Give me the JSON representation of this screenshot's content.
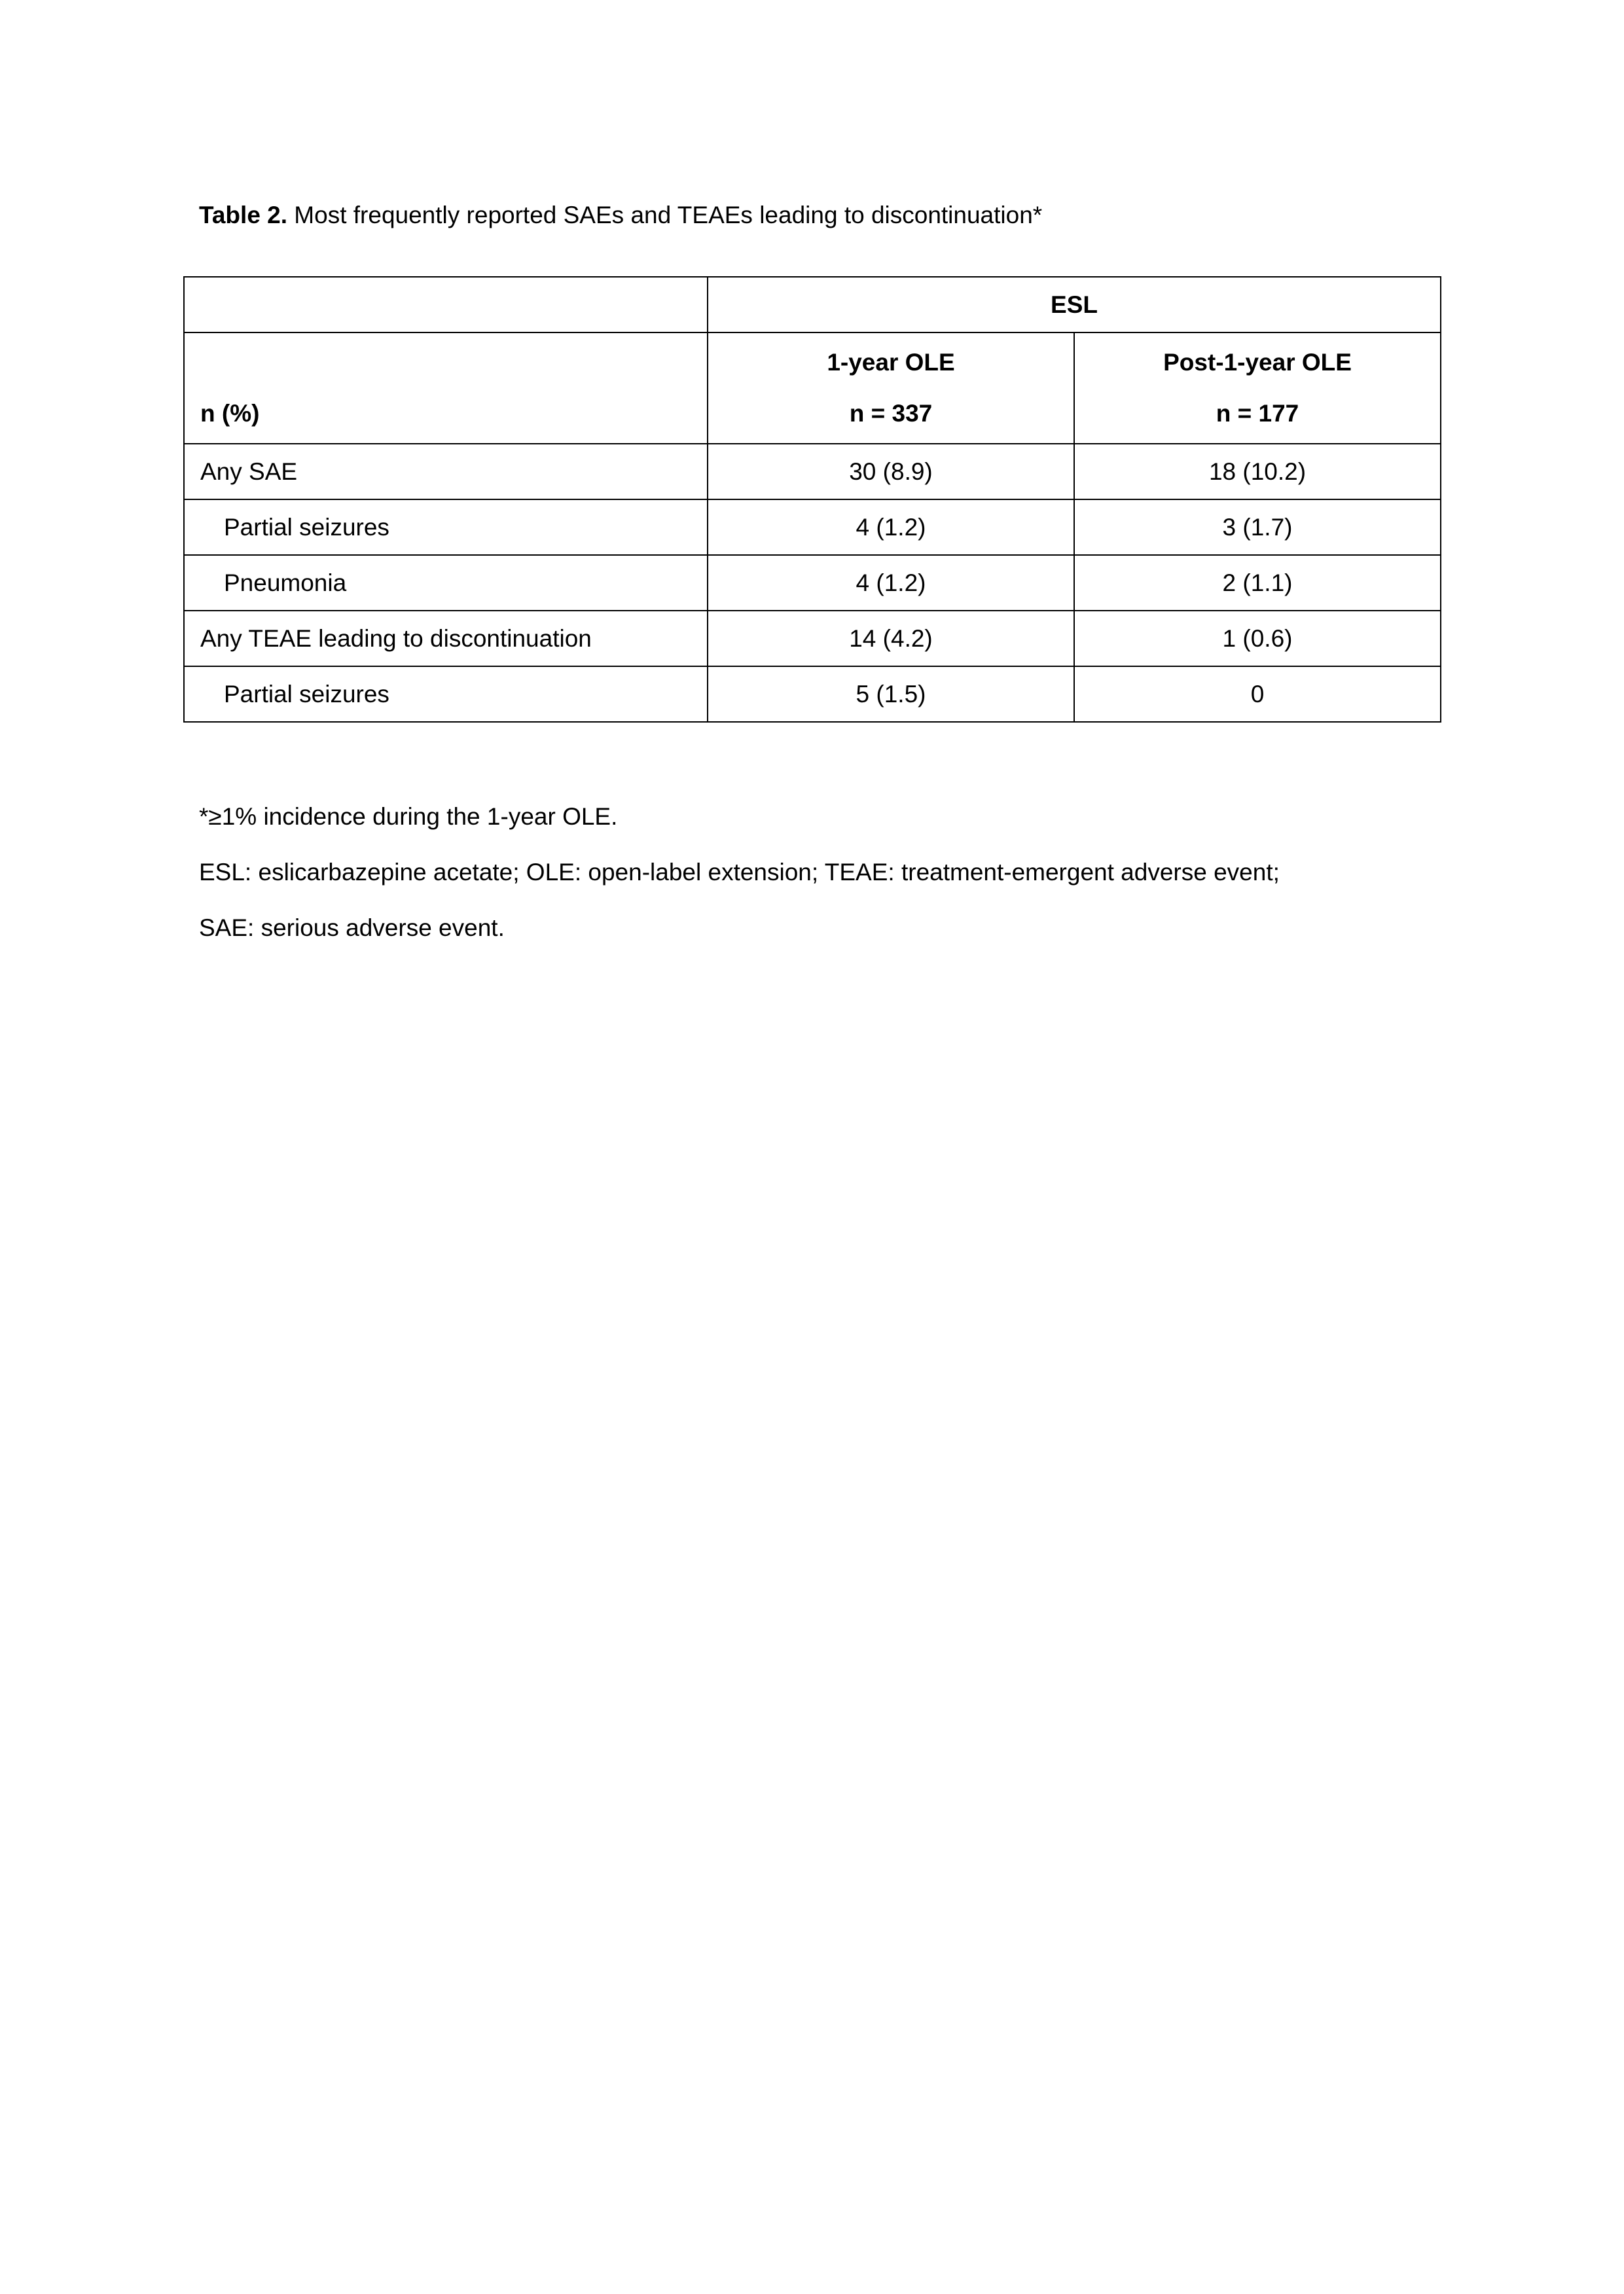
{
  "title": {
    "label": "Table 2.",
    "text": " Most frequently reported SAEs and TEAEs leading to discontinuation*"
  },
  "table": {
    "group_header": "ESL",
    "row_header_label": "n (%)",
    "columns": [
      {
        "name": "1-year OLE",
        "n": "n = 337"
      },
      {
        "name": "Post-1-year OLE",
        "n": "n = 177"
      }
    ],
    "rows": [
      {
        "label": "Any SAE",
        "indent": false,
        "values": [
          "30 (8.9)",
          "18 (10.2)"
        ]
      },
      {
        "label": "Partial seizures",
        "indent": true,
        "values": [
          "4 (1.2)",
          "3 (1.7)"
        ]
      },
      {
        "label": "Pneumonia",
        "indent": true,
        "values": [
          "4 (1.2)",
          "2 (1.1)"
        ]
      },
      {
        "label": "Any TEAE leading to discontinuation",
        "indent": false,
        "values": [
          "14 (4.2)",
          "1 (0.6)"
        ]
      },
      {
        "label": "Partial seizures",
        "indent": true,
        "values": [
          "5 (1.5)",
          "0"
        ]
      }
    ]
  },
  "footnotes": [
    "*≥1% incidence during the 1-year OLE.",
    "ESL: eslicarbazepine acetate; OLE: open-label extension; TEAE: treatment-emergent adverse event;",
    "SAE: serious adverse event."
  ]
}
